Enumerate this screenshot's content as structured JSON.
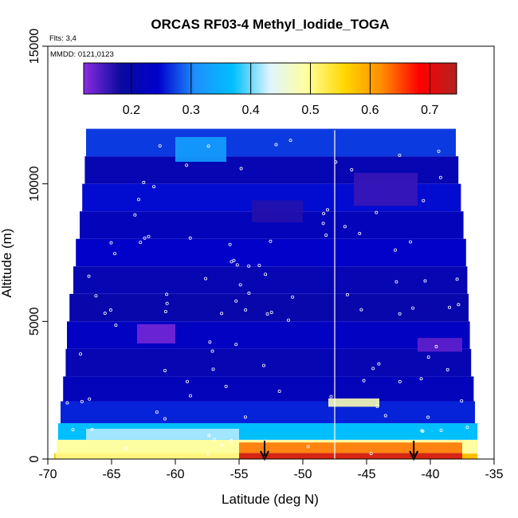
{
  "chart_data": {
    "type": "heatmap",
    "title": "ORCAS RF03-4 Methyl_Iodide_TOGA",
    "xlabel": "Latitude (deg N)",
    "ylabel": "Altitude (m)",
    "xlim": [
      -70,
      -35
    ],
    "ylim": [
      0,
      15000
    ],
    "x_ticks": [
      "-70",
      "-65",
      "-60",
      "-55",
      "-50",
      "-45",
      "-40",
      "-35"
    ],
    "y_ticks": [
      "0",
      "5000",
      "10000",
      "15000"
    ],
    "colorbar": {
      "range": [
        0.12,
        0.745
      ],
      "ticks": [
        "0.2",
        "0.3",
        "0.4",
        "0.5",
        "0.6",
        "0.7"
      ],
      "colors": [
        "#8a2be2",
        "#0a0a9e",
        "#0000cd",
        "#1e90ff",
        "#00bfff",
        "#e0f4ff",
        "#ffff99",
        "#ffd700",
        "#ff8c00",
        "#ff0000",
        "#b22222"
      ]
    },
    "notes": {
      "flights": "Flts: 3,4",
      "dates": "MMDD: 0121,0123"
    },
    "grid": false,
    "vertical_line_lat": -47.5,
    "arrow_lats": [
      -53,
      -41.3
    ],
    "layers": [
      {
        "y0": 0,
        "y1": 200,
        "x0": -69.5,
        "x1": -36.3,
        "value": 0.58
      },
      {
        "y0": 200,
        "y1": 700,
        "x0": -69.3,
        "x1": -36.3,
        "value": 0.49
      },
      {
        "y0": 700,
        "y1": 1300,
        "x0": -69.2,
        "x1": -36.3,
        "value": 0.37
      },
      {
        "y0": 1300,
        "y1": 2100,
        "x0": -69.0,
        "x1": -36.5,
        "value": 0.26
      },
      {
        "y0": 2100,
        "y1": 3000,
        "x0": -68.8,
        "x1": -36.6,
        "value": 0.22
      },
      {
        "y0": 3000,
        "y1": 4000,
        "x0": -68.6,
        "x1": -36.8,
        "value": 0.21
      },
      {
        "y0": 4000,
        "y1": 5000,
        "x0": -68.5,
        "x1": -36.9,
        "value": 0.23
      },
      {
        "y0": 5000,
        "y1": 6000,
        "x0": -68.3,
        "x1": -37.0,
        "value": 0.2
      },
      {
        "y0": 6000,
        "y1": 7000,
        "x0": -68.0,
        "x1": -37.1,
        "value": 0.21
      },
      {
        "y0": 7000,
        "y1": 8000,
        "x0": -67.8,
        "x1": -37.2,
        "value": 0.24
      },
      {
        "y0": 8000,
        "y1": 9000,
        "x0": -67.5,
        "x1": -37.4,
        "value": 0.22
      },
      {
        "y0": 9000,
        "y1": 10000,
        "x0": -67.3,
        "x1": -37.6,
        "value": 0.25
      },
      {
        "y0": 10000,
        "y1": 11000,
        "x0": -67.1,
        "x1": -37.8,
        "value": 0.21
      },
      {
        "y0": 11000,
        "y1": 12000,
        "x0": -67.0,
        "x1": -38.0,
        "value": 0.27
      }
    ],
    "features": [
      {
        "y0": 0,
        "y1": 220,
        "x0": -55,
        "x1": -37.5,
        "value": 0.72
      },
      {
        "y0": 220,
        "y1": 600,
        "x0": -55,
        "x1": -37.5,
        "value": 0.63
      },
      {
        "y0": 0,
        "y1": 250,
        "x0": -69.4,
        "x1": -55,
        "value": 0.5
      },
      {
        "y0": 700,
        "y1": 1100,
        "x0": -67,
        "x1": -55,
        "value": 0.42
      },
      {
        "y0": 1900,
        "y1": 2200,
        "x0": -48,
        "x1": -44,
        "value": 0.48
      },
      {
        "y0": 4200,
        "y1": 4900,
        "x0": -63,
        "x1": -60,
        "value": 0.13
      },
      {
        "y0": 3900,
        "y1": 4400,
        "x0": -41,
        "x1": -37.5,
        "value": 0.14
      },
      {
        "y0": 8600,
        "y1": 9400,
        "x0": -54,
        "x1": -50,
        "value": 0.17
      },
      {
        "y0": 9200,
        "y1": 10400,
        "x0": -46,
        "x1": -41,
        "value": 0.16
      },
      {
        "y0": 10800,
        "y1": 11700,
        "x0": -60,
        "x1": -56,
        "value": 0.33
      }
    ]
  }
}
